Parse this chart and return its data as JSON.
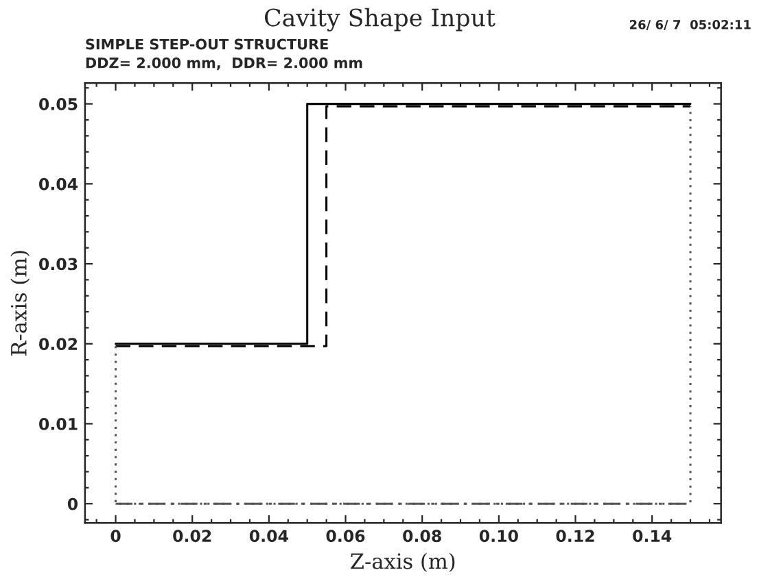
{
  "chart_data": {
    "type": "line",
    "title": "Cavity Shape Input",
    "subtitle": "SIMPLE STEP-OUT STRUCTURE",
    "annotations": [
      "DDZ= 2.000 mm,  DDR= 2.000 mm",
      "26/ 6/ 7  05:02:11"
    ],
    "xlabel": "Z-axis (m)",
    "ylabel": "R-axis (m)",
    "series": [
      {
        "x": [
          0,
          0.05,
          0.05,
          0.15
        ],
        "values": [
          0.02,
          0.02,
          0.05,
          0.05
        ],
        "color": "#000000",
        "line_style": "solid"
      },
      {
        "x": [
          0,
          0.055,
          0.055,
          0.15
        ],
        "values": [
          0.0197,
          0.0197,
          0.0497,
          0.0497
        ],
        "color": "#000000",
        "line_style": "dashed"
      },
      {
        "x": [
          0,
          0,
          0.15,
          0.15
        ],
        "values": [
          0.0197,
          0,
          0,
          0.0497
        ],
        "color": "#555555",
        "line_style": "dotted"
      },
      {
        "x": [
          0,
          0.15
        ],
        "values": [
          0,
          0
        ],
        "color": "#555555",
        "line_style": "dashdot"
      }
    ],
    "xlim": [
      -0.008,
      0.158
    ],
    "ylim": [
      -0.0024,
      0.0526
    ],
    "xticks": [
      0,
      0.02,
      0.04,
      0.06,
      0.08,
      {
        "value": 0.1,
        "label": "0.10"
      },
      0.12,
      0.14
    ],
    "yticks": [
      0,
      0.01,
      0.02,
      0.03,
      0.04,
      0.05
    ],
    "grid": false,
    "legend": false,
    "marker": "none"
  }
}
